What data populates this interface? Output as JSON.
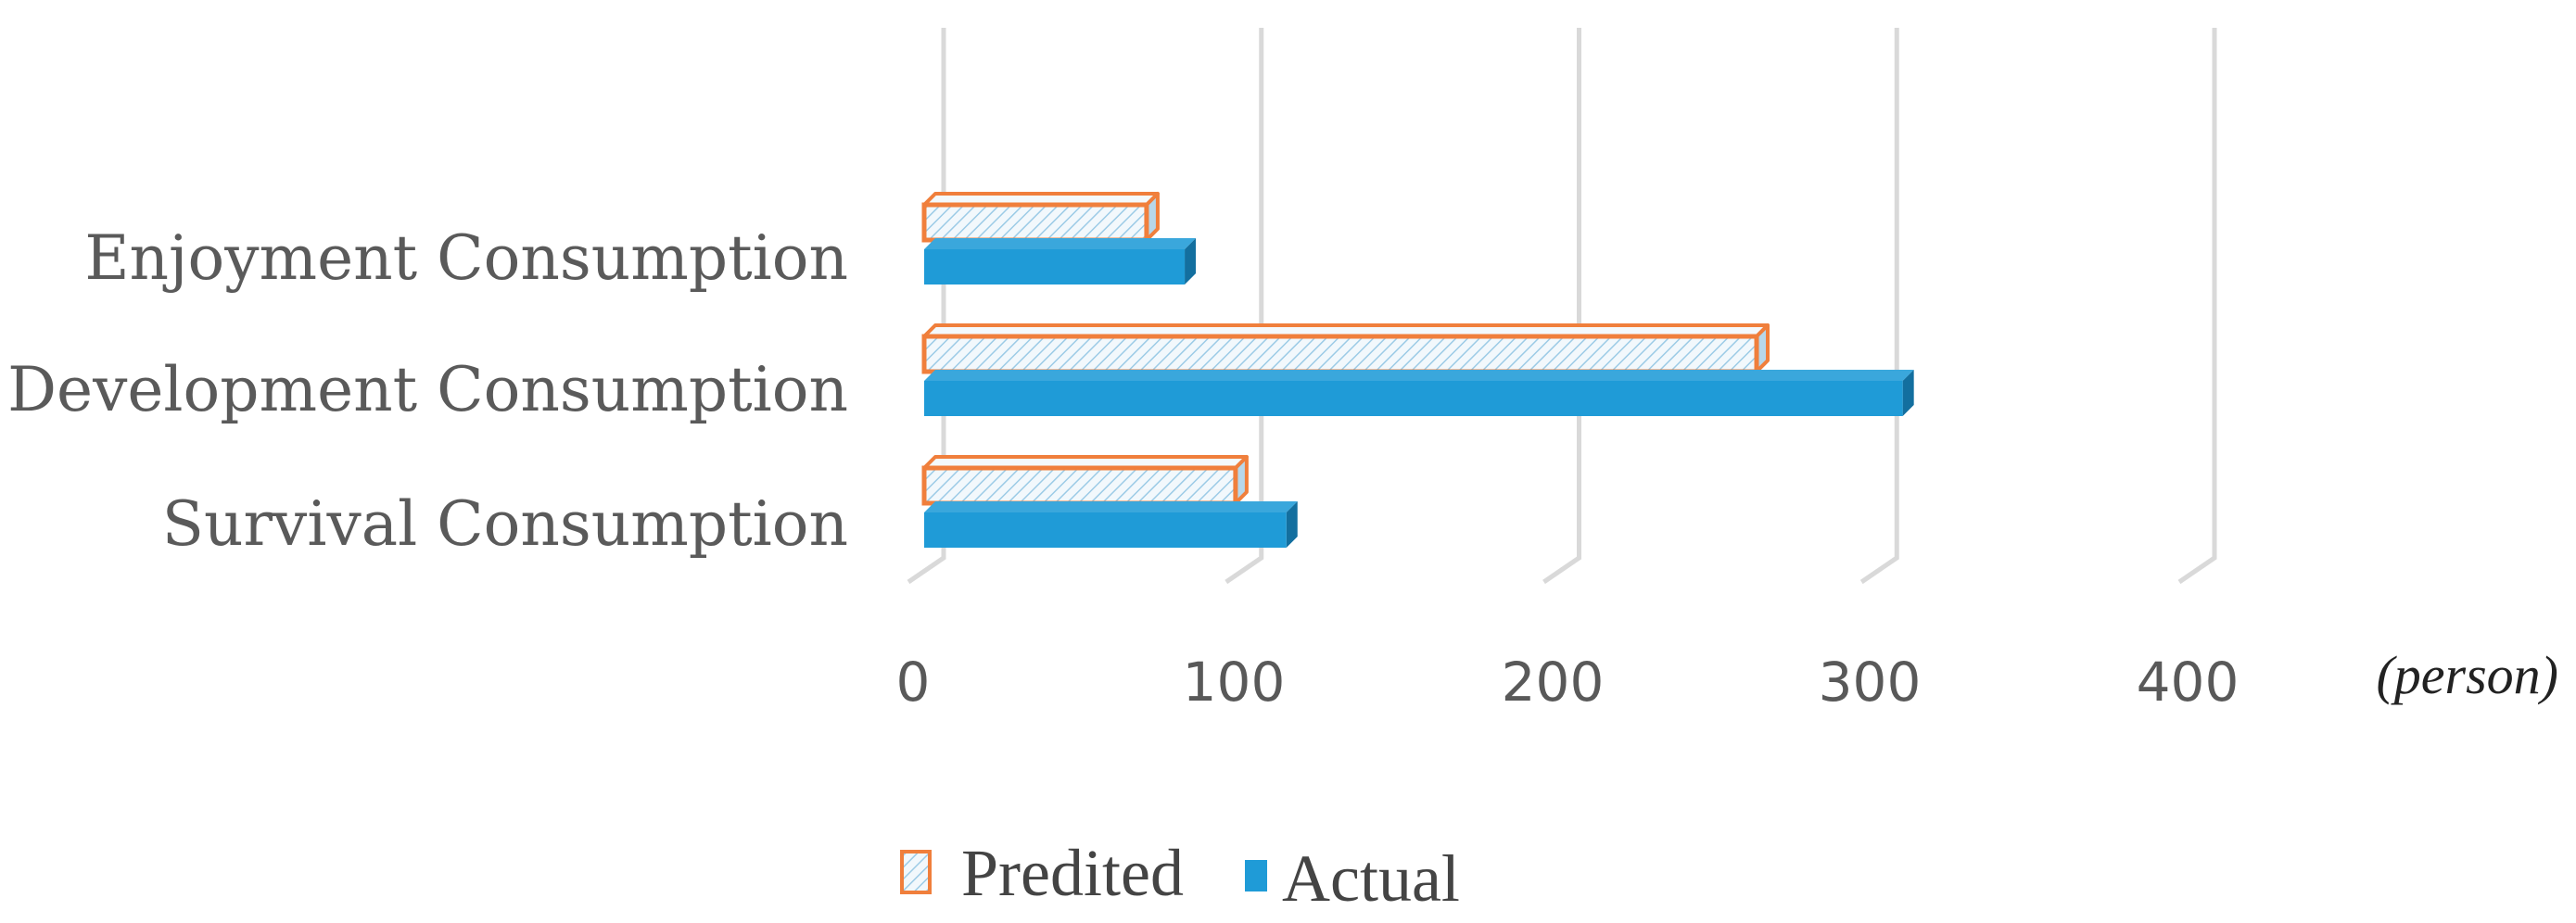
{
  "chart_data": {
    "type": "bar",
    "orientation": "horizontal",
    "style": "3d-clustered",
    "categories": [
      "Enjoyment Consumption",
      "Development Consumption",
      "Survival Consumption"
    ],
    "series": [
      {
        "name": "Predited",
        "values": [
          70,
          262,
          98
        ],
        "color": "#f07f3c",
        "fill": "hatched-light-blue"
      },
      {
        "name": "Actual",
        "values": [
          82,
          308,
          114
        ],
        "color": "#1f9bd7"
      }
    ],
    "x_ticks": [
      "0",
      "100",
      "200",
      "300",
      "400"
    ],
    "xlim": [
      0,
      400
    ],
    "x_unit": "(person)",
    "grid": true,
    "legend_position": "bottom"
  }
}
